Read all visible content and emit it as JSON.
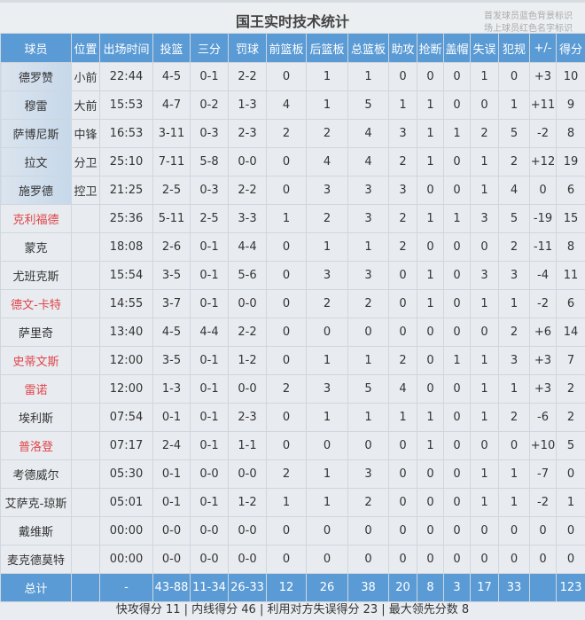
{
  "title": "国王实时技术统计",
  "legend_notes": [
    "首发球员蓝色背景标识",
    "场上球员红色名字标识"
  ],
  "colors": {
    "header": "#5b9bd5",
    "starter_bg": "#c6d8ea",
    "on_court_name": "#e0454a"
  },
  "columns": [
    "球员",
    "位置",
    "出场时间",
    "投篮",
    "三分",
    "罚球",
    "前篮板",
    "后篮板",
    "总篮板",
    "助攻",
    "抢断",
    "盖帽",
    "失误",
    "犯规",
    "+/-",
    "得分"
  ],
  "players": [
    {
      "name": "德罗赞",
      "starter": true,
      "on_court": false,
      "cells": [
        "小前",
        "22:44",
        "4-5",
        "0-1",
        "2-2",
        "0",
        "1",
        "1",
        "0",
        "0",
        "0",
        "1",
        "0",
        "+3",
        "10"
      ]
    },
    {
      "name": "穆雷",
      "starter": true,
      "on_court": false,
      "cells": [
        "大前",
        "15:53",
        "4-7",
        "0-2",
        "1-3",
        "4",
        "1",
        "5",
        "1",
        "1",
        "0",
        "0",
        "1",
        "+11",
        "9"
      ]
    },
    {
      "name": "萨博尼斯",
      "starter": true,
      "on_court": false,
      "cells": [
        "中锋",
        "16:53",
        "3-11",
        "0-3",
        "2-3",
        "2",
        "2",
        "4",
        "3",
        "1",
        "1",
        "2",
        "5",
        "-2",
        "8"
      ]
    },
    {
      "name": "拉文",
      "starter": true,
      "on_court": false,
      "cells": [
        "分卫",
        "25:10",
        "7-11",
        "5-8",
        "0-0",
        "0",
        "4",
        "4",
        "2",
        "1",
        "0",
        "1",
        "2",
        "+12",
        "19"
      ]
    },
    {
      "name": "施罗德",
      "starter": true,
      "on_court": false,
      "cells": [
        "控卫",
        "21:25",
        "2-5",
        "0-3",
        "2-2",
        "0",
        "3",
        "3",
        "3",
        "0",
        "0",
        "1",
        "4",
        "0",
        "6"
      ]
    },
    {
      "name": "克利福德",
      "starter": false,
      "on_court": true,
      "cells": [
        "",
        "25:36",
        "5-11",
        "2-5",
        "3-3",
        "1",
        "2",
        "3",
        "2",
        "1",
        "1",
        "3",
        "5",
        "-19",
        "15"
      ]
    },
    {
      "name": "蒙克",
      "starter": false,
      "on_court": false,
      "cells": [
        "",
        "18:08",
        "2-6",
        "0-1",
        "4-4",
        "0",
        "1",
        "1",
        "2",
        "0",
        "0",
        "0",
        "2",
        "-11",
        "8"
      ]
    },
    {
      "name": "尤班克斯",
      "starter": false,
      "on_court": false,
      "cells": [
        "",
        "15:54",
        "3-5",
        "0-1",
        "5-6",
        "0",
        "3",
        "3",
        "0",
        "1",
        "0",
        "3",
        "3",
        "-4",
        "11"
      ]
    },
    {
      "name": "德文-卡特",
      "starter": false,
      "on_court": true,
      "cells": [
        "",
        "14:55",
        "3-7",
        "0-1",
        "0-0",
        "0",
        "2",
        "2",
        "0",
        "1",
        "0",
        "1",
        "1",
        "-2",
        "6"
      ]
    },
    {
      "name": "萨里奇",
      "starter": false,
      "on_court": false,
      "cells": [
        "",
        "13:40",
        "4-5",
        "4-4",
        "2-2",
        "0",
        "0",
        "0",
        "0",
        "0",
        "0",
        "0",
        "2",
        "+6",
        "14"
      ]
    },
    {
      "name": "史蒂文斯",
      "starter": false,
      "on_court": true,
      "cells": [
        "",
        "12:00",
        "3-5",
        "0-1",
        "1-2",
        "0",
        "1",
        "1",
        "2",
        "0",
        "1",
        "1",
        "3",
        "+3",
        "7"
      ]
    },
    {
      "name": "雷诺",
      "starter": false,
      "on_court": true,
      "cells": [
        "",
        "12:00",
        "1-3",
        "0-1",
        "0-0",
        "2",
        "3",
        "5",
        "4",
        "0",
        "0",
        "1",
        "1",
        "+3",
        "2"
      ]
    },
    {
      "name": "埃利斯",
      "starter": false,
      "on_court": false,
      "cells": [
        "",
        "07:54",
        "0-1",
        "0-1",
        "2-3",
        "0",
        "1",
        "1",
        "1",
        "1",
        "0",
        "1",
        "2",
        "-6",
        "2"
      ]
    },
    {
      "name": "普洛登",
      "starter": false,
      "on_court": true,
      "cells": [
        "",
        "07:17",
        "2-4",
        "0-1",
        "1-1",
        "0",
        "0",
        "0",
        "0",
        "1",
        "0",
        "0",
        "0",
        "+10",
        "5"
      ]
    },
    {
      "name": "考德威尔",
      "starter": false,
      "on_court": false,
      "cells": [
        "",
        "05:30",
        "0-1",
        "0-0",
        "0-0",
        "2",
        "1",
        "3",
        "0",
        "0",
        "0",
        "1",
        "1",
        "-7",
        "0"
      ]
    },
    {
      "name": "艾萨克-琼斯",
      "starter": false,
      "on_court": false,
      "cells": [
        "",
        "05:01",
        "0-1",
        "0-1",
        "1-2",
        "1",
        "1",
        "2",
        "0",
        "0",
        "0",
        "1",
        "1",
        "-2",
        "1"
      ]
    },
    {
      "name": "戴维斯",
      "starter": false,
      "on_court": false,
      "cells": [
        "",
        "00:00",
        "0-0",
        "0-0",
        "0-0",
        "0",
        "0",
        "0",
        "0",
        "0",
        "0",
        "0",
        "0",
        "0",
        "0"
      ]
    },
    {
      "name": "麦克德莫特",
      "starter": false,
      "on_court": false,
      "cells": [
        "",
        "00:00",
        "0-0",
        "0-0",
        "0-0",
        "0",
        "0",
        "0",
        "0",
        "0",
        "0",
        "0",
        "0",
        "0",
        "0"
      ]
    }
  ],
  "totals": {
    "label": "总计",
    "cells": [
      "",
      "-",
      "43-88",
      "11-34",
      "26-33",
      "12",
      "26",
      "38",
      "20",
      "8",
      "3",
      "17",
      "33",
      "",
      "123"
    ]
  },
  "footer": "快攻得分 11 | 内线得分 46 | 利用对方失误得分 23 | 最大领先分数 8"
}
